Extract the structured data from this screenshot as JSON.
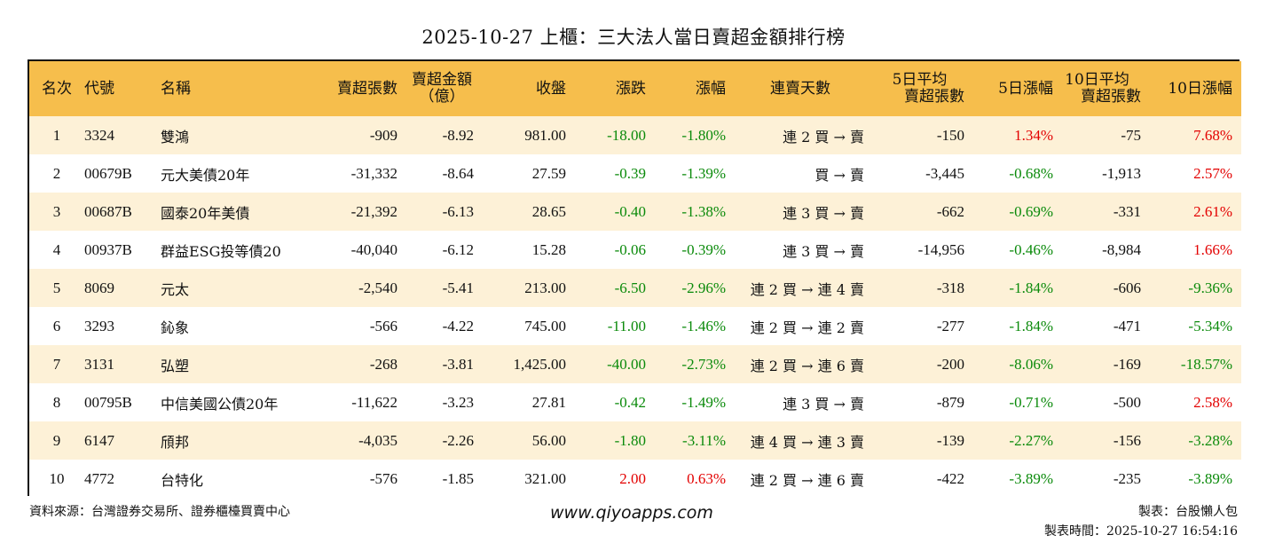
{
  "title": "2025-10-27 上櫃：三大法人當日賣超金額排行榜",
  "headers": [
    {
      "l1": "名次",
      "l2": ""
    },
    {
      "l1": "代號",
      "l2": ""
    },
    {
      "l1": "名稱",
      "l2": ""
    },
    {
      "l1": "賣超張數",
      "l2": ""
    },
    {
      "l1": "賣超金額",
      "l2": "（億）"
    },
    {
      "l1": "收盤",
      "l2": ""
    },
    {
      "l1": "漲跌",
      "l2": ""
    },
    {
      "l1": "漲幅",
      "l2": ""
    },
    {
      "l1": "連賣天數",
      "l2": ""
    },
    {
      "l1": "5日平均",
      "l2": "賣超張數"
    },
    {
      "l1": "5日漲幅",
      "l2": ""
    },
    {
      "l1": "10日平均",
      "l2": "賣超張數"
    },
    {
      "l1": "10日漲幅",
      "l2": ""
    }
  ],
  "rows": [
    {
      "rank": "1",
      "code": "3324",
      "name": "雙鴻",
      "sell_lots": "-909",
      "sell_amt": "-8.92",
      "close": "981.00",
      "change": "-18.00",
      "pct": "-1.80%",
      "streak": "連 2 買 → 賣",
      "avg5": "-150",
      "pct5": "1.34%",
      "avg10": "-75",
      "pct10": "7.68%"
    },
    {
      "rank": "2",
      "code": "00679B",
      "name": "元大美債20年",
      "sell_lots": "-31,332",
      "sell_amt": "-8.64",
      "close": "27.59",
      "change": "-0.39",
      "pct": "-1.39%",
      "streak": "買 → 賣",
      "avg5": "-3,445",
      "pct5": "-0.68%",
      "avg10": "-1,913",
      "pct10": "2.57%"
    },
    {
      "rank": "3",
      "code": "00687B",
      "name": "國泰20年美債",
      "sell_lots": "-21,392",
      "sell_amt": "-6.13",
      "close": "28.65",
      "change": "-0.40",
      "pct": "-1.38%",
      "streak": "連 3 買 → 賣",
      "avg5": "-662",
      "pct5": "-0.69%",
      "avg10": "-331",
      "pct10": "2.61%"
    },
    {
      "rank": "4",
      "code": "00937B",
      "name": "群益ESG投等債20",
      "sell_lots": "-40,040",
      "sell_amt": "-6.12",
      "close": "15.28",
      "change": "-0.06",
      "pct": "-0.39%",
      "streak": "連 3 買 → 賣",
      "avg5": "-14,956",
      "pct5": "-0.46%",
      "avg10": "-8,984",
      "pct10": "1.66%"
    },
    {
      "rank": "5",
      "code": "8069",
      "name": "元太",
      "sell_lots": "-2,540",
      "sell_amt": "-5.41",
      "close": "213.00",
      "change": "-6.50",
      "pct": "-2.96%",
      "streak": "連 2 買 → 連 4 賣",
      "avg5": "-318",
      "pct5": "-1.84%",
      "avg10": "-606",
      "pct10": "-9.36%"
    },
    {
      "rank": "6",
      "code": "3293",
      "name": "鈊象",
      "sell_lots": "-566",
      "sell_amt": "-4.22",
      "close": "745.00",
      "change": "-11.00",
      "pct": "-1.46%",
      "streak": "連 2 買 → 連 2 賣",
      "avg5": "-277",
      "pct5": "-1.84%",
      "avg10": "-471",
      "pct10": "-5.34%"
    },
    {
      "rank": "7",
      "code": "3131",
      "name": "弘塑",
      "sell_lots": "-268",
      "sell_amt": "-3.81",
      "close": "1,425.00",
      "change": "-40.00",
      "pct": "-2.73%",
      "streak": "連 2 買 → 連 6 賣",
      "avg5": "-200",
      "pct5": "-8.06%",
      "avg10": "-169",
      "pct10": "-18.57%"
    },
    {
      "rank": "8",
      "code": "00795B",
      "name": "中信美國公債20年",
      "sell_lots": "-11,622",
      "sell_amt": "-3.23",
      "close": "27.81",
      "change": "-0.42",
      "pct": "-1.49%",
      "streak": "連 3 買 → 賣",
      "avg5": "-879",
      "pct5": "-0.71%",
      "avg10": "-500",
      "pct10": "2.58%"
    },
    {
      "rank": "9",
      "code": "6147",
      "name": "頎邦",
      "sell_lots": "-4,035",
      "sell_amt": "-2.26",
      "close": "56.00",
      "change": "-1.80",
      "pct": "-3.11%",
      "streak": "連 4 買 → 連 3 賣",
      "avg5": "-139",
      "pct5": "-2.27%",
      "avg10": "-156",
      "pct10": "-3.28%"
    },
    {
      "rank": "10",
      "code": "4772",
      "name": "台特化",
      "sell_lots": "-576",
      "sell_amt": "-1.85",
      "close": "321.00",
      "change": "2.00",
      "pct": "0.63%",
      "streak": "連 2 買 → 連 6 賣",
      "avg5": "-422",
      "pct5": "-3.89%",
      "avg10": "-235",
      "pct10": "-3.89%"
    }
  ],
  "footer": {
    "source": "資料來源：台灣證券交易所、證券櫃檯買賣中心",
    "site": "www.qiyoapps.com",
    "maker": "製表：台股懶人包",
    "made_time": "製表時間：2025-10-27 16:54:16"
  },
  "colors": {
    "header_bg": "#f6be4c",
    "odd_row": "#fdf1d7",
    "up": "#e30000",
    "down": "#0a8a0a"
  }
}
